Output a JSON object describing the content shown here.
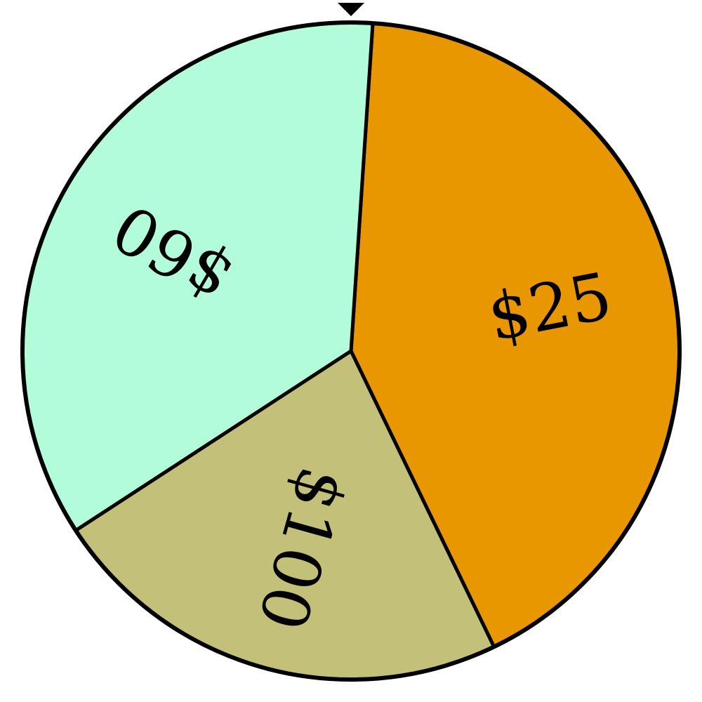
{
  "wheel": {
    "start_angle_deg": 3.8,
    "border_color": "#000000",
    "pointer_color": "#000000",
    "pointer_icon": "pointer-triangle-icon",
    "segments": [
      {
        "label": "$25",
        "degrees": 150.4,
        "color": "#E89700"
      },
      {
        "label": "$100",
        "degrees": 82.7,
        "color": "#C3C07A"
      },
      {
        "label": "$60",
        "degrees": 126.9,
        "color": "#B3FCDA"
      }
    ]
  }
}
